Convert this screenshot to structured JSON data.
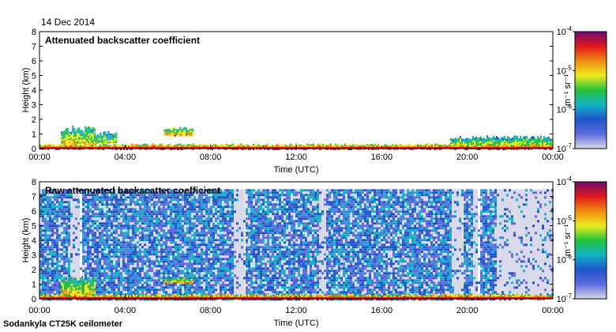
{
  "date": "14 Dec 2014",
  "footer": "Sodankyla CT25K ceilometer",
  "colormap": [
    "#d9d9ea",
    "#5d6bde",
    "#1f55c8",
    "#13b3c6",
    "#22c23a",
    "#ecec1d",
    "#f08a12",
    "#e0181c",
    "#6e0a6e"
  ],
  "chart_data": [
    {
      "type": "heatmap",
      "title": "Attenuated backscatter coefficient",
      "xlabel": "Time (UTC)",
      "ylabel": "Height (km)",
      "xlim": [
        0,
        24
      ],
      "ylim": [
        0,
        8
      ],
      "x_ticks": [
        "00:00",
        "04:00",
        "08:00",
        "12:00",
        "16:00",
        "20:00",
        "00:00"
      ],
      "y_ticks": [
        "0",
        "1",
        "2",
        "3",
        "4",
        "5",
        "6",
        "7",
        "8"
      ],
      "colorbar": {
        "label": "m⁻¹ sr⁻¹",
        "base": "10",
        "exponents": [
          "-4",
          "-5",
          "-6",
          "-7"
        ],
        "range_log10": [
          -7,
          -4
        ]
      },
      "features": [
        {
          "name": "surface layer",
          "t_start": 0,
          "t_end": 24,
          "h_bottom": 0,
          "h_top": 0.35,
          "log10_value": -5.2
        },
        {
          "name": "low cloud",
          "t_start": 1.0,
          "t_end": 2.6,
          "h_bottom": 0.3,
          "h_top": 1.6,
          "log10_value": -5.8
        },
        {
          "name": "low cloud",
          "t_start": 2.6,
          "t_end": 3.6,
          "h_bottom": 0.4,
          "h_top": 1.2,
          "log10_value": -6.0
        },
        {
          "name": "low cloud",
          "t_start": 5.8,
          "t_end": 7.2,
          "h_bottom": 0.9,
          "h_top": 1.5,
          "log10_value": -5.6
        },
        {
          "name": "low cloud",
          "t_start": 19.2,
          "t_end": 24,
          "h_bottom": 0.2,
          "h_top": 0.9,
          "log10_value": -5.9
        }
      ]
    },
    {
      "type": "heatmap",
      "title": "Raw attenuated backscatter coefficient",
      "xlabel": "Time (UTC)",
      "ylabel": "Height (km)",
      "xlim": [
        0,
        24
      ],
      "ylim": [
        0,
        8
      ],
      "x_ticks": [
        "00:00",
        "04:00",
        "08:00",
        "12:00",
        "16:00",
        "20:00",
        "00:00"
      ],
      "y_ticks": [
        "0",
        "1",
        "2",
        "3",
        "4",
        "5",
        "6",
        "7",
        "8"
      ],
      "colorbar": {
        "label": "m⁻¹ sr⁻¹",
        "base": "10",
        "exponents": [
          "-4",
          "-5",
          "-6",
          "-7"
        ],
        "range_log10": [
          -7,
          -4
        ]
      },
      "features": [
        {
          "name": "noise field",
          "t_start": 0,
          "t_end": 24,
          "h_bottom": 0,
          "h_top": 7.5,
          "log10_value": -6.4
        },
        {
          "name": "low cloud",
          "t_start": 1.0,
          "t_end": 2.6,
          "h_bottom": 0.3,
          "h_top": 1.6,
          "log10_value": -5.8
        },
        {
          "name": "low cloud",
          "t_start": 5.8,
          "t_end": 7.2,
          "h_bottom": 1.1,
          "h_top": 1.5,
          "log10_value": -5.6
        },
        {
          "name": "surface layer",
          "t_start": 0,
          "t_end": 24,
          "h_bottom": 0,
          "h_top": 0.35,
          "log10_value": -5.2
        }
      ],
      "gaps": [
        {
          "t_start": 1.4,
          "t_end": 1.9
        },
        {
          "t_start": 9.0,
          "t_end": 9.6
        },
        {
          "t_start": 13.0,
          "t_end": 13.4
        },
        {
          "t_start": 19.2,
          "t_end": 19.8
        },
        {
          "t_start": 20.2,
          "t_end": 20.5
        },
        {
          "t_start": 21.3,
          "t_end": 21.5
        },
        {
          "t_start": 21.5,
          "t_end": 24.0
        }
      ]
    }
  ]
}
